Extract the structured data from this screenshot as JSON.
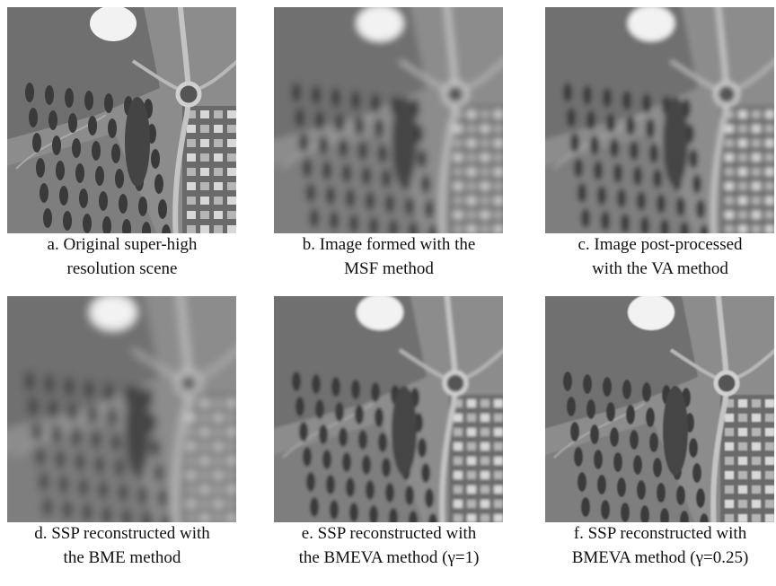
{
  "figure": {
    "panels": [
      {
        "caption": [
          "a. Original super-high",
          "resolution scene"
        ]
      },
      {
        "caption": [
          "b. Image formed with the",
          "MSF method"
        ]
      },
      {
        "caption": [
          "c. Image post-processed",
          "with the VA method"
        ]
      },
      {
        "caption": [
          "d. SSP reconstructed with",
          "the BME method"
        ]
      },
      {
        "caption": [
          "e. SSP reconstructed with",
          "the BMEVA method (γ=1)"
        ]
      },
      {
        "caption": [
          "f. SSP reconstructed with",
          "BMEVA method (γ=0.25)"
        ]
      }
    ]
  }
}
